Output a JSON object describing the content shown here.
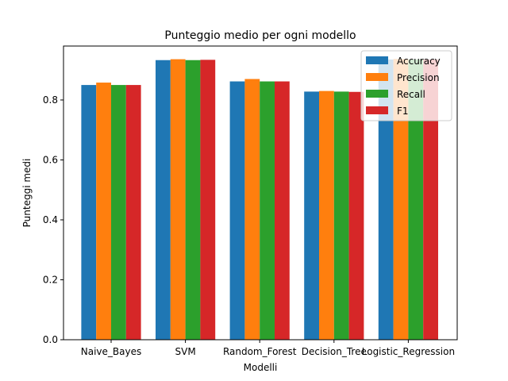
{
  "chart_data": {
    "type": "bar",
    "title": "Punteggio medio per ogni modello",
    "xlabel": "Modelli",
    "ylabel": "Punteggi medi",
    "ylim": [
      0,
      0.98
    ],
    "yticks": [
      0.0,
      0.2,
      0.4,
      0.6,
      0.8
    ],
    "ytick_labels": [
      "0.0",
      "0.2",
      "0.4",
      "0.6",
      "0.8"
    ],
    "grid": false,
    "legend_position": "top-right",
    "categories": [
      "Naive_Bayes",
      "SVM",
      "Random_Forest",
      "Decision_Tree",
      "Logistic_Regression"
    ],
    "series": [
      {
        "name": "Accuracy",
        "color": "#1f77b4",
        "values": [
          0.85,
          0.933,
          0.862,
          0.828,
          0.935
        ]
      },
      {
        "name": "Precision",
        "color": "#ff7f0e",
        "values": [
          0.858,
          0.936,
          0.87,
          0.83,
          0.937
        ]
      },
      {
        "name": "Recall",
        "color": "#2ca02c",
        "values": [
          0.85,
          0.933,
          0.862,
          0.828,
          0.935
        ]
      },
      {
        "name": "F1",
        "color": "#d62728",
        "values": [
          0.85,
          0.934,
          0.862,
          0.827,
          0.935
        ]
      }
    ]
  }
}
